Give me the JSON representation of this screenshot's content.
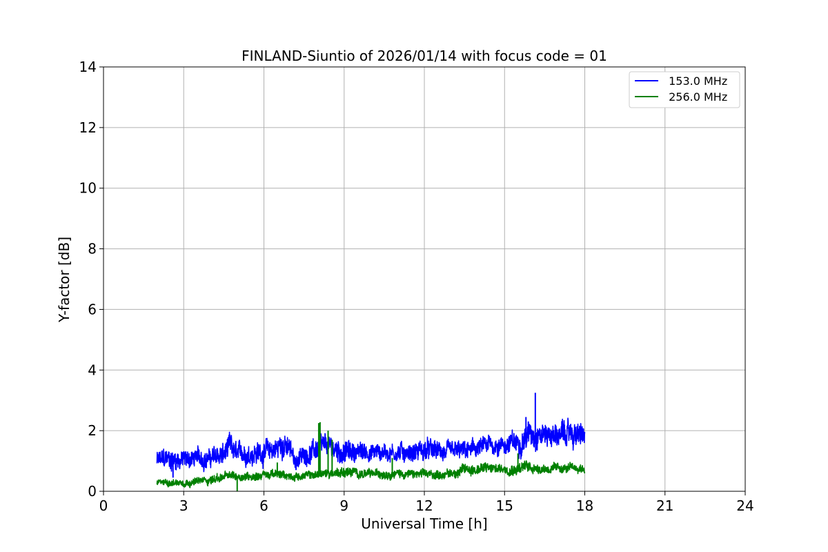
{
  "chart_data": {
    "type": "line",
    "title": "FINLAND-Siuntio of 2026/01/14 with focus code = 01",
    "xlabel": "Universal Time [h]",
    "ylabel": "Y-factor [dB]",
    "xlim": [
      0,
      24
    ],
    "ylim": [
      0,
      14
    ],
    "xticks": [
      0,
      3,
      6,
      9,
      12,
      15,
      18,
      21,
      24
    ],
    "yticks": [
      0,
      2,
      4,
      6,
      8,
      10,
      12,
      14
    ],
    "grid": true,
    "legend_position": "top-right",
    "series": [
      {
        "name": " 153.0 MHz",
        "color": "#0000ff",
        "x": [
          2.0,
          2.5,
          3.0,
          3.5,
          4.0,
          4.5,
          4.7,
          5.0,
          5.5,
          6.0,
          6.5,
          6.7,
          7.0,
          7.2,
          7.5,
          8.0,
          8.5,
          9.0,
          9.5,
          10.0,
          10.5,
          11.0,
          11.5,
          12.0,
          12.5,
          13.0,
          13.5,
          14.0,
          14.5,
          15.0,
          15.5,
          15.9,
          16.2,
          16.5,
          17.0,
          17.5,
          18.0
        ],
        "center": [
          1.0,
          1.05,
          1.05,
          1.1,
          1.1,
          1.2,
          1.4,
          1.2,
          1.3,
          1.3,
          1.4,
          1.6,
          1.3,
          1.0,
          1.2,
          1.4,
          1.4,
          1.3,
          1.3,
          1.3,
          1.3,
          1.3,
          1.3,
          1.35,
          1.3,
          1.25,
          1.3,
          1.4,
          1.5,
          1.55,
          1.6,
          1.9,
          1.95,
          1.9,
          1.85,
          1.9,
          1.8
        ],
        "spread": [
          0.25,
          0.3,
          0.25,
          0.25,
          0.25,
          0.3,
          0.35,
          0.25,
          0.3,
          0.3,
          0.3,
          0.35,
          0.3,
          0.2,
          0.25,
          0.3,
          0.3,
          0.3,
          0.25,
          0.25,
          0.25,
          0.25,
          0.25,
          0.3,
          0.25,
          0.25,
          0.25,
          0.25,
          0.25,
          0.25,
          0.3,
          0.35,
          0.35,
          0.3,
          0.3,
          0.35,
          0.3
        ],
        "spikes": [
          [
            2.6,
            0.45
          ],
          [
            16.15,
            3.25
          ],
          [
            7.2,
            0.7
          ],
          [
            15.8,
            2.45
          ]
        ]
      },
      {
        "name": " 256.0 MHz",
        "color": "#008000",
        "x": [
          2.0,
          2.5,
          3.0,
          3.5,
          4.0,
          4.5,
          5.0,
          5.5,
          6.0,
          6.5,
          7.0,
          7.5,
          8.0,
          8.5,
          9.0,
          9.5,
          10.0,
          10.5,
          11.0,
          11.5,
          12.0,
          12.5,
          13.0,
          13.5,
          14.0,
          14.5,
          15.0,
          15.5,
          16.0,
          16.5,
          17.0,
          17.5,
          18.0
        ],
        "center": [
          0.28,
          0.3,
          0.3,
          0.32,
          0.38,
          0.48,
          0.5,
          0.5,
          0.55,
          0.55,
          0.5,
          0.5,
          0.55,
          0.6,
          0.65,
          0.6,
          0.55,
          0.6,
          0.6,
          0.55,
          0.55,
          0.55,
          0.6,
          0.7,
          0.75,
          0.75,
          0.75,
          0.8,
          0.8,
          0.75,
          0.75,
          0.75,
          0.75
        ],
        "spread": [
          0.08,
          0.1,
          0.1,
          0.1,
          0.12,
          0.12,
          0.12,
          0.12,
          0.12,
          0.12,
          0.1,
          0.1,
          0.12,
          0.12,
          0.15,
          0.12,
          0.12,
          0.12,
          0.12,
          0.12,
          0.12,
          0.12,
          0.12,
          0.15,
          0.15,
          0.15,
          0.12,
          0.18,
          0.15,
          0.12,
          0.12,
          0.12,
          0.12
        ],
        "spikes": [
          [
            8.05,
            2.25
          ],
          [
            8.1,
            2.28
          ],
          [
            8.4,
            2.0
          ],
          [
            8.55,
            1.7
          ],
          [
            5.0,
            0.0
          ],
          [
            6.5,
            0.95
          ],
          [
            15.5,
            1.25
          ],
          [
            10.8,
            1.1
          ]
        ]
      }
    ]
  }
}
